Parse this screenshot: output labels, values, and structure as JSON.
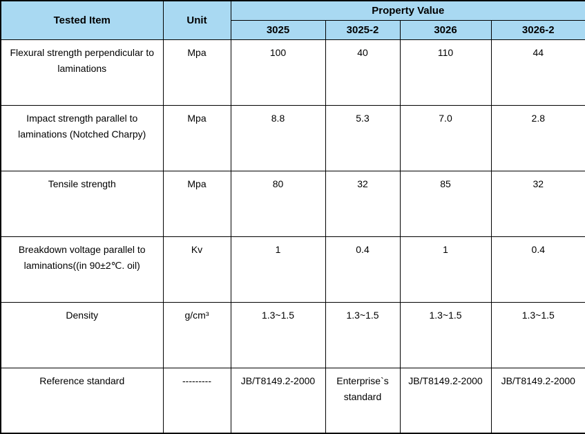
{
  "chart_data": {
    "type": "table",
    "title": "",
    "header": {
      "tested_item": "Tested Item",
      "unit": "Unit",
      "property_value": "Property Value",
      "grades": [
        "3025",
        "3025-2",
        "3026",
        "3026-2"
      ]
    },
    "rows": [
      {
        "item": "Flexural strength perpendicular to laminations",
        "unit": "Mpa",
        "values": [
          "100",
          "40",
          "110",
          "44"
        ]
      },
      {
        "item": "Impact strength parallel to laminations (Notched Charpy)",
        "unit": "Mpa",
        "values": [
          "8.8",
          "5.3",
          "7.0",
          "2.8"
        ]
      },
      {
        "item": "Tensile strength",
        "unit": "Mpa",
        "values": [
          "80",
          "32",
          "85",
          "32"
        ]
      },
      {
        "item": "Breakdown voltage parallel to laminations((in 90±2℃. oil)",
        "unit": "Kv",
        "values": [
          "1",
          "0.4",
          "1",
          "0.4"
        ]
      },
      {
        "item": "Density",
        "unit": "g/cm³",
        "values": [
          "1.3~1.5",
          "1.3~1.5",
          "1.3~1.5",
          "1.3~1.5"
        ]
      },
      {
        "item": "Reference standard",
        "unit": "---------",
        "values": [
          "JB/T8149.2-2000",
          "Enterprise`s standard",
          "JB/T8149.2-2000",
          "JB/T8149.2-2000"
        ]
      }
    ],
    "colors": {
      "header_bg": "#a9d9f2",
      "border": "#000000"
    }
  }
}
